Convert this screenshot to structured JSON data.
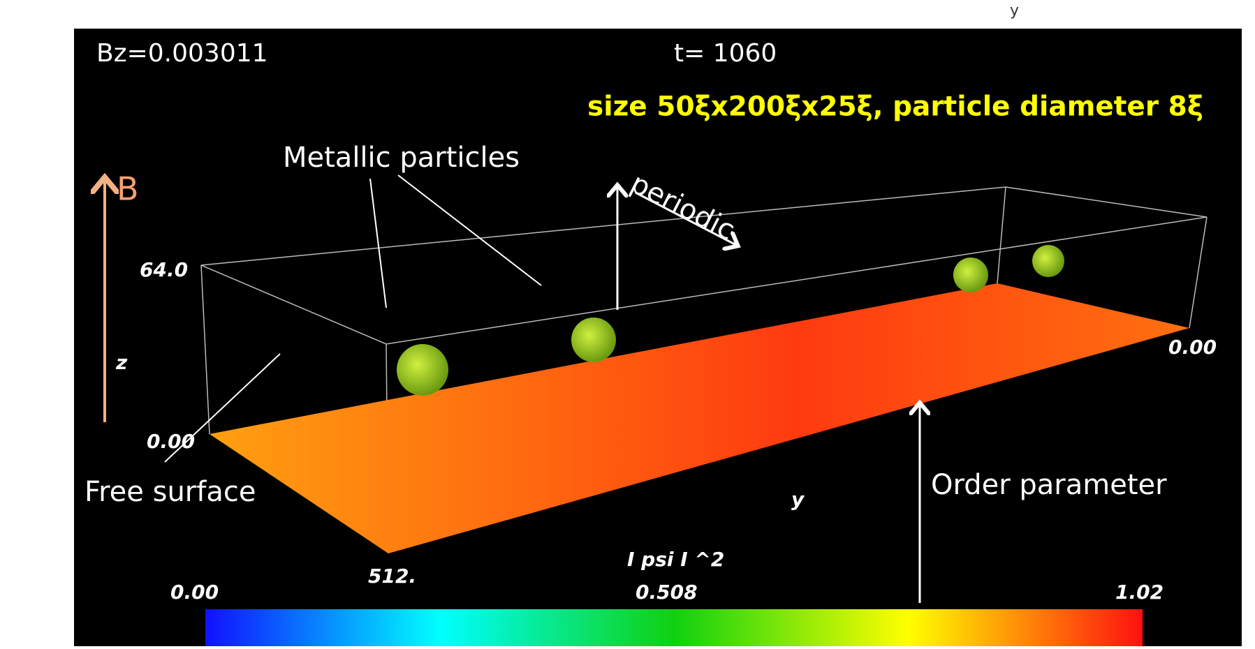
{
  "top_label": "y",
  "hud": {
    "bz": "Bz=0.003011",
    "time": "t=  1060"
  },
  "caption": "size 50ξx200ξx25ξ, particle diameter 8ξ",
  "annotations": {
    "particles": "Metallic particles",
    "field": "B",
    "periodic": "periodic",
    "surface": "Free surface",
    "order": "Order parameter"
  },
  "axes": {
    "z_max": "64.0",
    "z_label": "z",
    "z_min": "0.00",
    "y_min": "0.00",
    "y_max": "512.",
    "y_label": "y"
  },
  "colorbar": {
    "title": "I psi I ^2",
    "ticks": [
      "0.00",
      "0.508",
      "1.02"
    ]
  }
}
